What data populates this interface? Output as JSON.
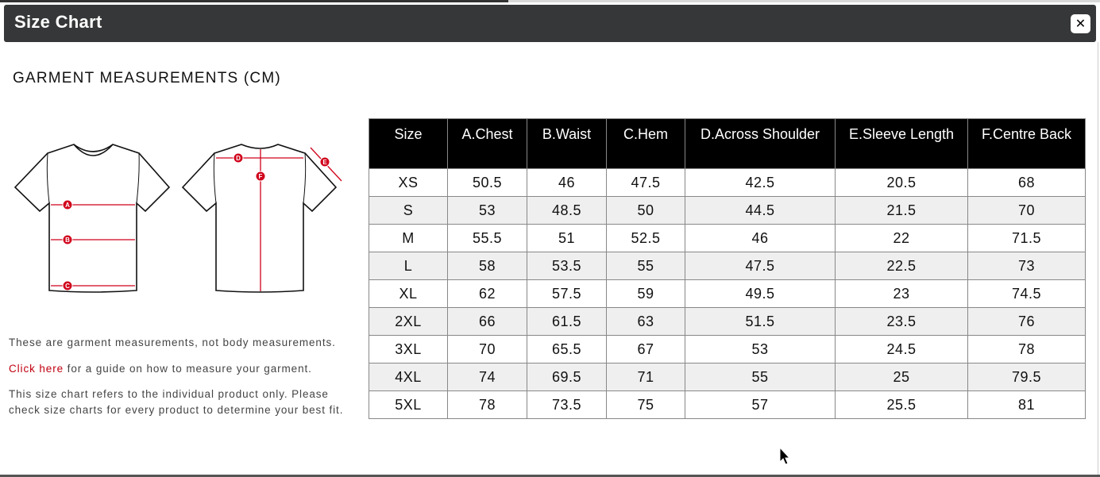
{
  "dialog": {
    "title": "Size Chart",
    "close_icon": "close-icon"
  },
  "heading": "GARMENT MEASUREMENTS (CM)",
  "diagram": {
    "labels": [
      "A",
      "B",
      "C",
      "D",
      "E",
      "F"
    ],
    "accent": "#d0021b"
  },
  "notes": {
    "note1": "These are garment measurements, not body measurements.",
    "link": "Click here",
    "note2_rest": " for a guide on how to measure your garment.",
    "note3": "This size chart refers to the individual product only. Please check size charts for every product to determine your best fit."
  },
  "table": {
    "headers": [
      "Size",
      "A.Chest",
      "B.Waist",
      "C.Hem",
      "D.Across Shoulder",
      "E.Sleeve Length",
      "F.Centre Back"
    ],
    "rows": [
      [
        "XS",
        "50.5",
        "46",
        "47.5",
        "42.5",
        "20.5",
        "68"
      ],
      [
        "S",
        "53",
        "48.5",
        "50",
        "44.5",
        "21.5",
        "70"
      ],
      [
        "M",
        "55.5",
        "51",
        "52.5",
        "46",
        "22",
        "71.5"
      ],
      [
        "L",
        "58",
        "53.5",
        "55",
        "47.5",
        "22.5",
        "73"
      ],
      [
        "XL",
        "62",
        "57.5",
        "59",
        "49.5",
        "23",
        "74.5"
      ],
      [
        "2XL",
        "66",
        "61.5",
        "63",
        "51.5",
        "23.5",
        "76"
      ],
      [
        "3XL",
        "70",
        "65.5",
        "67",
        "53",
        "24.5",
        "78"
      ],
      [
        "4XL",
        "74",
        "69.5",
        "71",
        "55",
        "25",
        "79.5"
      ],
      [
        "5XL",
        "78",
        "73.5",
        "75",
        "57",
        "25.5",
        "81"
      ]
    ]
  }
}
